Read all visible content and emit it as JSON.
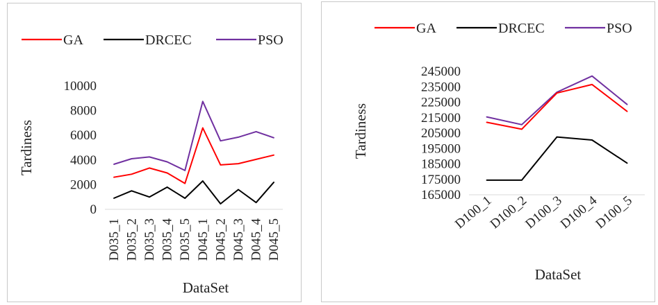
{
  "chart_data": [
    {
      "type": "line",
      "categories": [
        "D035_1",
        "D035_2",
        "D035_3",
        "D035_4",
        "D035_5",
        "D045_1",
        "D045_2",
        "D045_3",
        "D045_4",
        "D045_5"
      ],
      "series": [
        {
          "name": "GA",
          "color": "#ff0000",
          "values": [
            2600,
            2850,
            3350,
            2950,
            2100,
            6600,
            3600,
            3700,
            4050,
            4400
          ]
        },
        {
          "name": "DRCEC",
          "color": "#000000",
          "values": [
            900,
            1500,
            1000,
            1800,
            900,
            2300,
            450,
            1600,
            550,
            2200
          ]
        },
        {
          "name": "PSO",
          "color": "#7030a0",
          "values": [
            3650,
            4100,
            4250,
            3850,
            3150,
            8750,
            5550,
            5850,
            6300,
            5800
          ]
        }
      ],
      "ylim": [
        0,
        10000
      ],
      "yticks": [
        "0",
        "2000",
        "4000",
        "6000",
        "8000",
        "10000"
      ],
      "xlabel": "DataSet",
      "ylabel": "Tardiness",
      "legend": "top",
      "grid": false
    },
    {
      "type": "line",
      "categories": [
        "D100_1",
        "D100_2",
        "D100_3",
        "D100_4",
        "D100_5"
      ],
      "series": [
        {
          "name": "GA",
          "color": "#ff0000",
          "values": [
            212000,
            207500,
            231000,
            236500,
            219000
          ]
        },
        {
          "name": "DRCEC",
          "color": "#000000",
          "values": [
            174500,
            174500,
            202500,
            200500,
            185500
          ]
        },
        {
          "name": "PSO",
          "color": "#7030a0",
          "values": [
            215500,
            210500,
            231500,
            242000,
            223500
          ]
        }
      ],
      "ylim": [
        165000,
        245000
      ],
      "yticks": [
        "165000",
        "175000",
        "185000",
        "195000",
        "205000",
        "215000",
        "225000",
        "235000",
        "245000"
      ],
      "xlabel": "DataSet",
      "ylabel": "Tardiness",
      "legend": "top",
      "grid": false
    }
  ]
}
